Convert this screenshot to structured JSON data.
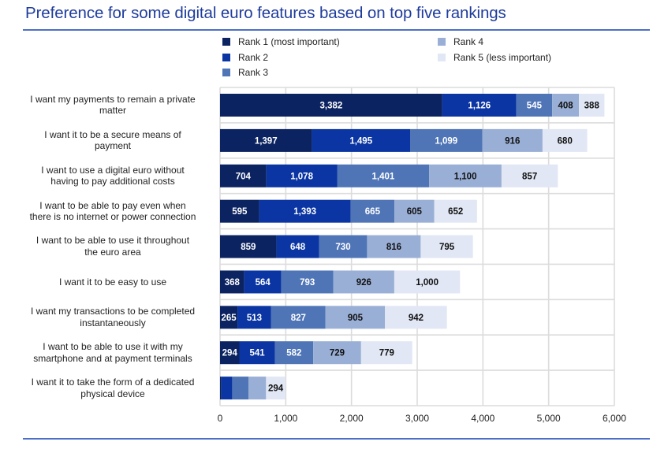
{
  "chart_data": {
    "type": "bar",
    "orientation": "horizontal",
    "stacked": true,
    "title": "Preference for some digital euro features based on top five rankings",
    "xlabel": "",
    "ylabel": "",
    "xlim": [
      0,
      6000
    ],
    "xticks": [
      0,
      1000,
      2000,
      3000,
      4000,
      5000,
      6000
    ],
    "xtick_labels": [
      "0",
      "1,000",
      "2,000",
      "3,000",
      "4,000",
      "5,000",
      "6,000"
    ],
    "grid": true,
    "legend_position": "top",
    "categories": [
      "I want my payments to remain a private matter",
      "I want it to be a secure means of payment",
      "I want to use a digital euro without having to pay additional costs",
      "I want to be able to pay even when there is no internet or power connection",
      "I want to be able to use it throughout the euro area",
      "I want it to be easy to use",
      "I want my transactions to be completed instantaneously",
      "I want to be able to use it with my smartphone and at payment terminals",
      "I want it to take the form of a dedicated physical device"
    ],
    "series": [
      {
        "name": "Rank 1 (most important)",
        "color": "#0b2361",
        "label_color": "#ffffff",
        "values": [
          3382,
          1397,
          704,
          595,
          859,
          368,
          265,
          294,
          20
        ],
        "labels": [
          "3,382",
          "1,397",
          "704",
          "595",
          "859",
          "368",
          "265",
          "294",
          ""
        ]
      },
      {
        "name": "Rank 2",
        "color": "#0a35a2",
        "label_color": "#ffffff",
        "values": [
          1126,
          1495,
          1078,
          1393,
          648,
          564,
          513,
          541,
          165
        ],
        "labels": [
          "1,126",
          "1,495",
          "1,078",
          "1,393",
          "648",
          "564",
          "513",
          "541",
          ""
        ]
      },
      {
        "name": "Rank 3",
        "color": "#4f75b7",
        "label_color": "#ffffff",
        "values": [
          545,
          1099,
          1401,
          665,
          730,
          793,
          827,
          582,
          250
        ],
        "labels": [
          "545",
          "1,099",
          "1,401",
          "665",
          "730",
          "793",
          "827",
          "582",
          ""
        ]
      },
      {
        "name": "Rank 4",
        "color": "#9aafd6",
        "label_color": "#111111",
        "values": [
          408,
          916,
          1100,
          605,
          816,
          926,
          905,
          729,
          265
        ],
        "labels": [
          "408",
          "916",
          "1,100",
          "605",
          "816",
          "926",
          "905",
          "729",
          ""
        ]
      },
      {
        "name": "Rank 5 (less important)",
        "color": "#e1e7f4",
        "label_color": "#111111",
        "values": [
          388,
          680,
          857,
          652,
          795,
          1000,
          942,
          779,
          294
        ],
        "labels": [
          "388",
          "680",
          "857",
          "652",
          "795",
          "1,000",
          "942",
          "779",
          "294"
        ]
      }
    ]
  },
  "category_lines": [
    [
      "I want my payments to remain a private",
      "matter"
    ],
    [
      "I want it to be a secure means of",
      "payment"
    ],
    [
      "I want to use a digital euro without",
      "having to pay additional costs"
    ],
    [
      "I want to be able to pay even when",
      "there is no internet or power connection"
    ],
    [
      "I want to be able to use it throughout",
      "the euro area"
    ],
    [
      "I want it to be easy to use"
    ],
    [
      "I want my transactions to be completed",
      "instantaneously"
    ],
    [
      "I want to be able to use it with my",
      "smartphone and at payment terminals"
    ],
    [
      "I want it to take the form of a dedicated",
      "physical device"
    ]
  ]
}
